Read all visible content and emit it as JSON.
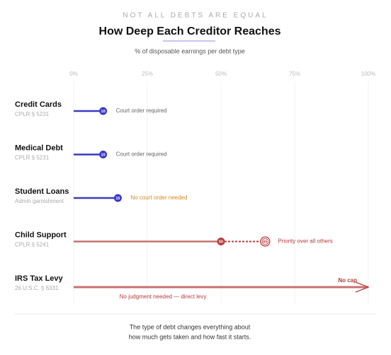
{
  "chart_data": {
    "type": "lollipop",
    "supertitle": "NOT ALL DEBTS ARE EQUAL",
    "title": "How Deep Each Creditor Reaches",
    "subtitle": "% of disposable earnings per debt type",
    "xlim": [
      0,
      100
    ],
    "xticks": [
      {
        "value": 0,
        "label": "0%"
      },
      {
        "value": 25,
        "label": "25%"
      },
      {
        "value": 50,
        "label": "50%"
      },
      {
        "value": 75,
        "label": "75%"
      },
      {
        "value": 100,
        "label": "100%"
      }
    ],
    "grid": true,
    "categories": [
      "Credit Cards",
      "Medical Debt",
      "Student Loans",
      "Child Support",
      "IRS Tax Levy"
    ],
    "citations": [
      "CPLR § 5231",
      "CPLR § 5231",
      "Admin garnishment",
      "CPLR § 5241",
      "26 U.S.C. § 6331"
    ],
    "values": [
      10,
      10,
      15,
      50,
      100
    ],
    "range_max": [
      null,
      null,
      null,
      65,
      null
    ],
    "open_ended": [
      false,
      false,
      false,
      false,
      true
    ],
    "end_labels": [
      null,
      null,
      null,
      null,
      "No cap"
    ],
    "annotations": [
      "Court order required",
      "Court order required",
      "No court order needed",
      "Priority over all others",
      "No judgment needed — direct levy"
    ],
    "colors": [
      "#3a3ac4",
      "#3a3ac4",
      "#3a3ac4",
      "#c97070",
      "#c97070"
    ],
    "marker_colors": [
      "#3a3ac4",
      "#3a3ac4",
      "#3a3ac4",
      "#b83b3b",
      "#b83b3b"
    ],
    "annotation_colors": [
      "#666666",
      "#666666",
      "#d98a1c",
      "#b83b3b",
      "#b83b3b"
    ],
    "footnote": [
      "The type of debt changes everything about",
      "how much gets taken and how fast it starts."
    ]
  }
}
